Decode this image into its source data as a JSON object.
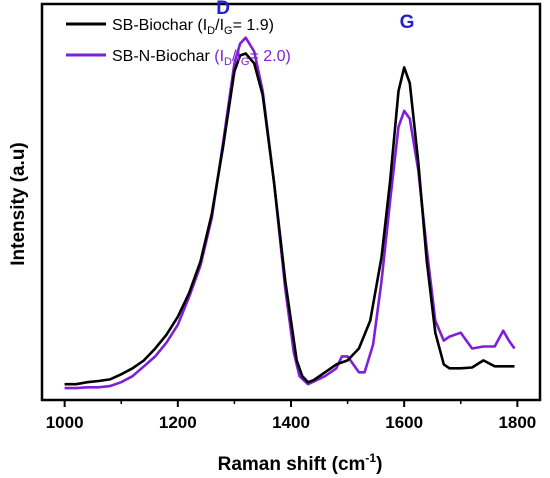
{
  "chart_data": {
    "type": "line",
    "xlabel": "Raman shift (cm",
    "xlabel_sup": "-1",
    "xlabel_end": ")",
    "ylabel": "Intensity (a.u)",
    "xlim": [
      960,
      1840
    ],
    "ylim": [
      0,
      1.0
    ],
    "x_ticks": [
      1000,
      1200,
      1400,
      1600,
      1800
    ],
    "y_ticks_shown": false,
    "legend_position": "top-left",
    "annotations": [
      {
        "text": "D",
        "x": 1280,
        "y": 0.975,
        "color": "#2222cc"
      },
      {
        "text": "G",
        "x": 1605,
        "y": 0.94,
        "color": "#2222cc"
      }
    ],
    "series": [
      {
        "name": "SB-Biochar",
        "legend": {
          "prefix": "SB-Biochar (",
          "a": "I",
          "a_sub": "D",
          "slash": "/",
          "b": "I",
          "b_sub": "G",
          "suffix": "= 1.9)",
          "ratio_color": "#000000"
        },
        "color": "#000000",
        "points": [
          [
            1000,
            0.04
          ],
          [
            1020,
            0.04
          ],
          [
            1040,
            0.045
          ],
          [
            1060,
            0.048
          ],
          [
            1080,
            0.052
          ],
          [
            1100,
            0.065
          ],
          [
            1120,
            0.08
          ],
          [
            1140,
            0.1
          ],
          [
            1160,
            0.13
          ],
          [
            1180,
            0.165
          ],
          [
            1200,
            0.21
          ],
          [
            1220,
            0.27
          ],
          [
            1240,
            0.35
          ],
          [
            1260,
            0.47
          ],
          [
            1280,
            0.64
          ],
          [
            1300,
            0.83
          ],
          [
            1310,
            0.87
          ],
          [
            1320,
            0.875
          ],
          [
            1335,
            0.85
          ],
          [
            1350,
            0.77
          ],
          [
            1370,
            0.55
          ],
          [
            1390,
            0.3
          ],
          [
            1410,
            0.1
          ],
          [
            1420,
            0.06
          ],
          [
            1430,
            0.045
          ],
          [
            1440,
            0.05
          ],
          [
            1460,
            0.07
          ],
          [
            1480,
            0.09
          ],
          [
            1500,
            0.1
          ],
          [
            1520,
            0.13
          ],
          [
            1540,
            0.2
          ],
          [
            1560,
            0.36
          ],
          [
            1575,
            0.55
          ],
          [
            1590,
            0.78
          ],
          [
            1600,
            0.84
          ],
          [
            1610,
            0.8
          ],
          [
            1625,
            0.6
          ],
          [
            1640,
            0.35
          ],
          [
            1655,
            0.17
          ],
          [
            1670,
            0.09
          ],
          [
            1680,
            0.08
          ],
          [
            1700,
            0.08
          ],
          [
            1720,
            0.082
          ],
          [
            1740,
            0.1
          ],
          [
            1760,
            0.085
          ],
          [
            1780,
            0.085
          ],
          [
            1795,
            0.085
          ]
        ]
      },
      {
        "name": "SB-N-Biochar",
        "legend": {
          "prefix": "SB-N-Biochar ",
          "a": "(I",
          "a_sub": "D",
          "slash": "/",
          "b": "I",
          "b_sub": "G",
          "suffix": "= 2.0)",
          "ratio_color": "#7f1fd6"
        },
        "color": "#7f1fd6",
        "points": [
          [
            1000,
            0.03
          ],
          [
            1020,
            0.03
          ],
          [
            1040,
            0.032
          ],
          [
            1060,
            0.032
          ],
          [
            1080,
            0.035
          ],
          [
            1100,
            0.045
          ],
          [
            1120,
            0.06
          ],
          [
            1140,
            0.085
          ],
          [
            1160,
            0.11
          ],
          [
            1180,
            0.145
          ],
          [
            1200,
            0.19
          ],
          [
            1220,
            0.26
          ],
          [
            1240,
            0.34
          ],
          [
            1260,
            0.46
          ],
          [
            1280,
            0.65
          ],
          [
            1300,
            0.85
          ],
          [
            1310,
            0.9
          ],
          [
            1320,
            0.915
          ],
          [
            1335,
            0.88
          ],
          [
            1350,
            0.78
          ],
          [
            1370,
            0.55
          ],
          [
            1390,
            0.28
          ],
          [
            1405,
            0.12
          ],
          [
            1415,
            0.06
          ],
          [
            1430,
            0.04
          ],
          [
            1445,
            0.05
          ],
          [
            1460,
            0.06
          ],
          [
            1480,
            0.08
          ],
          [
            1490,
            0.11
          ],
          [
            1500,
            0.11
          ],
          [
            1510,
            0.09
          ],
          [
            1520,
            0.07
          ],
          [
            1530,
            0.07
          ],
          [
            1545,
            0.14
          ],
          [
            1560,
            0.3
          ],
          [
            1575,
            0.5
          ],
          [
            1590,
            0.69
          ],
          [
            1600,
            0.73
          ],
          [
            1610,
            0.71
          ],
          [
            1625,
            0.58
          ],
          [
            1640,
            0.38
          ],
          [
            1655,
            0.2
          ],
          [
            1670,
            0.15
          ],
          [
            1680,
            0.16
          ],
          [
            1700,
            0.17
          ],
          [
            1710,
            0.15
          ],
          [
            1720,
            0.13
          ],
          [
            1740,
            0.135
          ],
          [
            1760,
            0.135
          ],
          [
            1775,
            0.175
          ],
          [
            1785,
            0.15
          ],
          [
            1795,
            0.13
          ]
        ]
      }
    ]
  }
}
